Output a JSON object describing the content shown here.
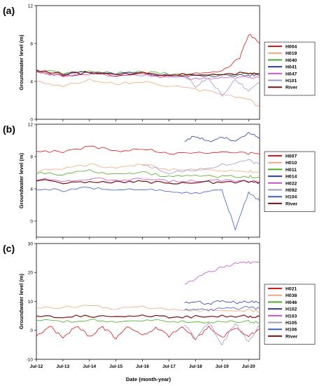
{
  "chart_data": [
    {
      "type": "line",
      "panel_label": "(a)",
      "ylabel": "Groundwater level (m)",
      "ylim": [
        0,
        12
      ],
      "yticks": [
        0,
        4,
        8,
        12
      ],
      "xlim": [
        "2012-07",
        "2020-12"
      ],
      "legend_position": "right",
      "series": [
        {
          "name": "H004",
          "color": "#d7191c",
          "x": [
            "2012-07",
            "2013-07",
            "2014-07",
            "2015-07",
            "2016-07",
            "2017-07",
            "2018-07",
            "2019-07",
            "2020-03",
            "2020-07",
            "2020-12"
          ],
          "y": [
            5.0,
            4.6,
            4.9,
            4.7,
            4.8,
            4.6,
            4.8,
            5.0,
            6.5,
            9.0,
            8.0
          ]
        },
        {
          "name": "H019",
          "color": "#f4a582",
          "x": [
            "2012-07",
            "2013-07",
            "2014-07",
            "2015-07",
            "2016-07",
            "2017-07",
            "2018-07",
            "2019-07",
            "2020-07",
            "2020-12"
          ],
          "y": [
            4.0,
            3.5,
            4.2,
            3.8,
            4.0,
            3.5,
            3.2,
            2.6,
            2.2,
            1.2
          ]
        },
        {
          "name": "H040",
          "color": "#4dac26",
          "x": [
            "2012-07",
            "2013-07",
            "2014-07",
            "2015-07",
            "2016-07",
            "2017-07",
            "2018-07",
            "2019-07",
            "2020-07",
            "2020-12"
          ],
          "y": [
            5.2,
            4.9,
            5.0,
            4.9,
            5.0,
            4.8,
            4.7,
            4.8,
            4.8,
            4.7
          ]
        },
        {
          "name": "H041",
          "color": "#2c3e9e",
          "x": [
            "2012-07",
            "2013-07",
            "2014-07",
            "2015-07",
            "2016-07",
            "2017-07",
            "2018-07",
            "2019-07",
            "2020-07",
            "2020-12"
          ],
          "y": [
            5.1,
            4.8,
            5.0,
            4.8,
            4.9,
            4.6,
            4.5,
            4.6,
            4.7,
            4.6
          ]
        },
        {
          "name": "H047",
          "color": "#c455c4",
          "x": [
            "2012-07",
            "2013-07",
            "2014-07",
            "2015-07",
            "2016-07",
            "2017-07",
            "2018-07",
            "2019-07",
            "2020-07",
            "2020-12"
          ],
          "y": [
            5.0,
            4.6,
            4.8,
            4.6,
            4.7,
            4.4,
            4.3,
            4.4,
            4.5,
            4.4
          ]
        },
        {
          "name": "H101",
          "color": "#9e9ac8",
          "x": [
            "2018-02",
            "2018-07",
            "2019-01",
            "2019-07",
            "2020-01",
            "2020-07",
            "2020-12"
          ],
          "y": [
            4.6,
            3.5,
            4.4,
            2.5,
            4.2,
            3.0,
            4.0
          ]
        },
        {
          "name": "River",
          "color": "#7b1113",
          "x": [
            "2012-07",
            "2013-07",
            "2014-07",
            "2015-07",
            "2016-07",
            "2017-07",
            "2018-07",
            "2019-07",
            "2020-07",
            "2020-12"
          ],
          "y": [
            5.1,
            4.8,
            4.9,
            4.8,
            4.9,
            4.7,
            4.8,
            4.8,
            4.9,
            4.8
          ]
        }
      ]
    },
    {
      "type": "line",
      "panel_label": "(b)",
      "ylabel": "Groundwater level (m)",
      "ylim": [
        -2,
        12
      ],
      "yticks": [
        0,
        4,
        8,
        12
      ],
      "xlim": [
        "2012-07",
        "2020-12"
      ],
      "legend_position": "right",
      "series": [
        {
          "name": "H007",
          "color": "#d7191c",
          "x": [
            "2012-07",
            "2013-07",
            "2014-07",
            "2015-07",
            "2016-07",
            "2017-07",
            "2018-07",
            "2019-07",
            "2020-07",
            "2020-12"
          ],
          "y": [
            8.8,
            8.5,
            9.3,
            8.7,
            9.0,
            8.4,
            8.5,
            8.6,
            8.4,
            8.3
          ]
        },
        {
          "name": "H010",
          "color": "#f4a582",
          "x": [
            "2012-07",
            "2013-07",
            "2014-07",
            "2015-07",
            "2016-07",
            "2017-07",
            "2018-07",
            "2019-07",
            "2020-07",
            "2020-12"
          ],
          "y": [
            6.2,
            6.5,
            7.0,
            6.5,
            7.0,
            6.4,
            6.5,
            6.3,
            6.2,
            6.0
          ]
        },
        {
          "name": "H011",
          "color": "#4dac26",
          "x": [
            "2012-07",
            "2013-07",
            "2014-07",
            "2015-07",
            "2016-07",
            "2017-07",
            "2018-07",
            "2019-07",
            "2020-07",
            "2020-12"
          ],
          "y": [
            6.0,
            5.8,
            6.3,
            5.8,
            6.0,
            5.5,
            5.6,
            5.5,
            5.5,
            5.4
          ]
        },
        {
          "name": "H014",
          "color": "#2c3e9e",
          "x": [
            "2018-02",
            "2018-07",
            "2019-01",
            "2019-07",
            "2020-01",
            "2020-07",
            "2020-12"
          ],
          "y": [
            10.0,
            10.5,
            9.8,
            10.3,
            10.0,
            11.0,
            10.2
          ]
        },
        {
          "name": "H022",
          "color": "#c455c4",
          "x": [
            "2012-07",
            "2013-07",
            "2014-07",
            "2015-07",
            "2016-07",
            "2017-07",
            "2018-07",
            "2019-07",
            "2020-07",
            "2020-12"
          ],
          "y": [
            5.2,
            5.0,
            5.3,
            5.0,
            5.2,
            4.9,
            5.0,
            5.0,
            5.0,
            4.9
          ]
        },
        {
          "name": "H092",
          "color": "#9e9ac8",
          "x": [
            "2016-07",
            "2017-07",
            "2018-07",
            "2019-07",
            "2020-07",
            "2020-12"
          ],
          "y": [
            7.0,
            6.0,
            6.3,
            7.0,
            7.5,
            7.0
          ]
        },
        {
          "name": "H104",
          "color": "#3f5fbf",
          "x": [
            "2012-07",
            "2013-07",
            "2014-07",
            "2015-07",
            "2016-07",
            "2017-07",
            "2018-07",
            "2019-07",
            "2020-01",
            "2020-07",
            "2020-12"
          ],
          "y": [
            4.0,
            3.8,
            4.2,
            3.7,
            4.0,
            3.6,
            3.5,
            3.8,
            -1.0,
            3.5,
            2.5
          ]
        },
        {
          "name": "River",
          "color": "#7b1113",
          "x": [
            "2012-07",
            "2013-07",
            "2014-07",
            "2015-07",
            "2016-07",
            "2017-07",
            "2018-07",
            "2019-07",
            "2020-07",
            "2020-12"
          ],
          "y": [
            5.1,
            4.8,
            4.9,
            4.8,
            4.9,
            4.7,
            4.8,
            4.8,
            4.9,
            4.8
          ]
        }
      ]
    },
    {
      "type": "line",
      "panel_label": "(c)",
      "ylabel": "Groundwater level (m)",
      "xlabel": "Date (month-year)",
      "ylim": [
        -10,
        30
      ],
      "yticks": [
        -10,
        0,
        10,
        20,
        30
      ],
      "xlim": [
        "2012-07",
        "2020-12"
      ],
      "xticks": [
        "Jul-12",
        "Jul-13",
        "Jul-14",
        "Jul-15",
        "Jul-16",
        "Jul-17",
        "Jul-18",
        "Jul-19",
        "Jul-20"
      ],
      "legend_position": "right",
      "series": [
        {
          "name": "H021",
          "color": "#d7191c",
          "x": [
            "2012-07",
            "2013-01",
            "2013-07",
            "2014-01",
            "2014-07",
            "2015-01",
            "2015-07",
            "2016-01",
            "2016-07",
            "2017-01",
            "2017-07",
            "2018-01",
            "2018-07",
            "2019-01",
            "2019-07",
            "2020-01",
            "2020-07",
            "2020-12"
          ],
          "y": [
            -2.0,
            1.5,
            -2.5,
            1.5,
            -2.0,
            1.0,
            -2.5,
            1.5,
            -2.0,
            1.0,
            -2.0,
            1.5,
            -3.0,
            1.0,
            -2.5,
            1.0,
            -2.0,
            0.5
          ]
        },
        {
          "name": "H038",
          "color": "#f4a582",
          "x": [
            "2012-07",
            "2013-07",
            "2014-07",
            "2015-07",
            "2016-07",
            "2017-07",
            "2018-07",
            "2019-07",
            "2020-07",
            "2020-12"
          ],
          "y": [
            8.0,
            8.0,
            8.5,
            7.5,
            8.0,
            7.0,
            7.0,
            6.5,
            7.0,
            6.5
          ]
        },
        {
          "name": "H046",
          "color": "#4dac26",
          "x": [
            "2012-07",
            "2013-07",
            "2014-07",
            "2015-07",
            "2016-07",
            "2017-07",
            "2018-07",
            "2019-07",
            "2020-07",
            "2020-12"
          ],
          "y": [
            3.5,
            3.0,
            3.5,
            3.0,
            3.5,
            3.0,
            3.0,
            3.0,
            3.0,
            2.8
          ]
        },
        {
          "name": "H102",
          "color": "#2c3e9e",
          "x": [
            "2018-02",
            "2018-07",
            "2019-01",
            "2019-07",
            "2020-01",
            "2020-07",
            "2020-12"
          ],
          "y": [
            9.5,
            10.0,
            9.0,
            10.5,
            9.5,
            10.0,
            9.5
          ]
        },
        {
          "name": "H103",
          "color": "#c455c4",
          "x": [
            "2018-02",
            "2018-07",
            "2019-01",
            "2019-07",
            "2020-01",
            "2020-07",
            "2020-12"
          ],
          "y": [
            16.0,
            18.0,
            20.0,
            22.0,
            23.0,
            23.5,
            23.5
          ]
        },
        {
          "name": "H105",
          "color": "#9e9ac8",
          "x": [
            "2018-02",
            "2018-07",
            "2019-01",
            "2019-07",
            "2020-01",
            "2020-07",
            "2020-12"
          ],
          "y": [
            2.0,
            -3.0,
            3.0,
            -5.0,
            2.5,
            -4.0,
            2.0
          ]
        },
        {
          "name": "H106",
          "color": "#3f5fbf",
          "x": [
            "2018-02",
            "2018-07",
            "2019-01",
            "2019-07",
            "2020-01",
            "2020-07",
            "2020-12"
          ],
          "y": [
            7.0,
            7.5,
            7.0,
            7.5,
            7.5,
            8.0,
            7.5
          ]
        },
        {
          "name": "River",
          "color": "#7b1113",
          "x": [
            "2012-07",
            "2013-07",
            "2014-07",
            "2015-07",
            "2016-07",
            "2017-07",
            "2018-07",
            "2019-07",
            "2020-07",
            "2020-12"
          ],
          "y": [
            5.0,
            4.8,
            4.9,
            4.8,
            4.9,
            4.7,
            4.8,
            4.8,
            4.9,
            4.8
          ]
        }
      ]
    }
  ]
}
